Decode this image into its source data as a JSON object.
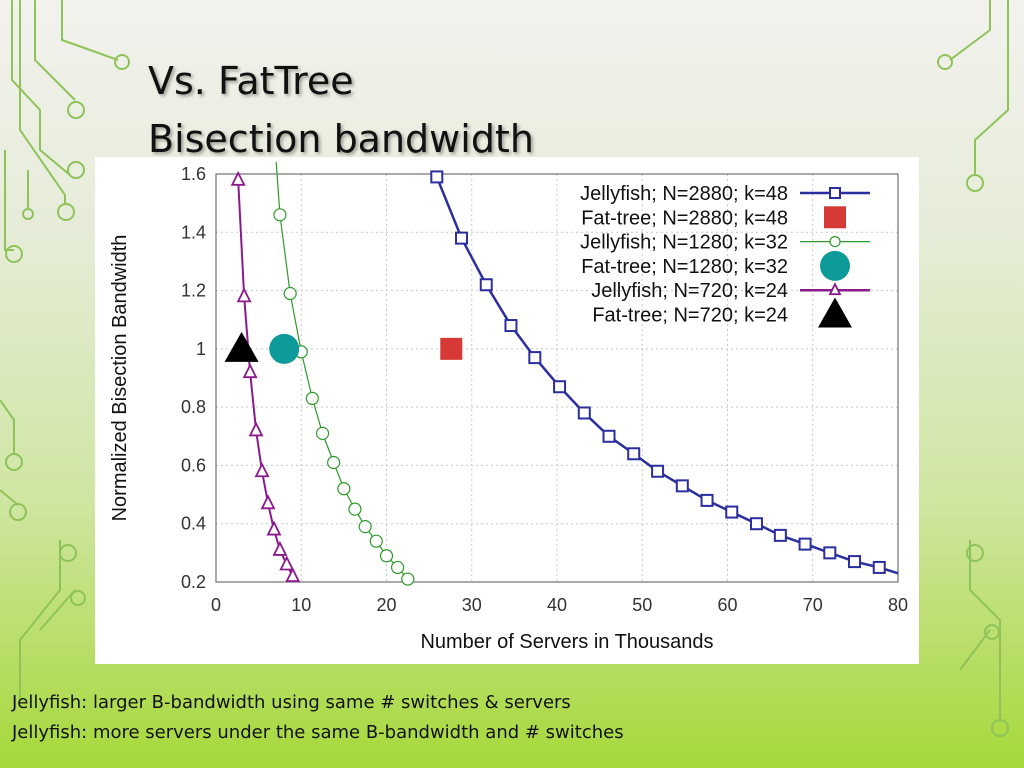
{
  "slide": {
    "title_line1": "Vs. FatTree",
    "title_line2": "Bisection bandwidth",
    "captions": [
      "Jellyfish: larger B-bandwidth using same # switches & servers",
      "Jellyfish: more servers under the same B-bandwidth and # switches"
    ]
  },
  "chart_data": {
    "type": "line",
    "xlabel": "Number of Servers in Thousands",
    "ylabel": "Normalized Bisection Bandwidth",
    "xlim": [
      0,
      80
    ],
    "ylim": [
      0.2,
      1.6
    ],
    "x_ticks": [
      "0",
      "10",
      "20",
      "30",
      "40",
      "50",
      "60",
      "70",
      "80"
    ],
    "y_ticks": [
      "0.2",
      "0.4",
      "0.6",
      "0.8",
      "1",
      "1.2",
      "1.4",
      "1.6"
    ],
    "grid": true,
    "legend_position": "top-right",
    "series": [
      {
        "name": "Jellyfish; N=2880; k=48",
        "kind": "line",
        "marker": "square",
        "color": "#2b2f9e",
        "points": [
          [
            25.9,
            1.59
          ],
          [
            28.8,
            1.38
          ],
          [
            31.7,
            1.22
          ],
          [
            34.6,
            1.08
          ],
          [
            37.4,
            0.97
          ],
          [
            40.3,
            0.87
          ],
          [
            43.2,
            0.78
          ],
          [
            46.1,
            0.7
          ],
          [
            49.0,
            0.64
          ],
          [
            51.8,
            0.58
          ],
          [
            54.7,
            0.53
          ],
          [
            57.6,
            0.48
          ],
          [
            60.5,
            0.44
          ],
          [
            63.4,
            0.4
          ],
          [
            66.2,
            0.36
          ],
          [
            69.1,
            0.33
          ],
          [
            72.0,
            0.3
          ],
          [
            74.9,
            0.27
          ],
          [
            77.8,
            0.25
          ],
          [
            80.0,
            0.23
          ]
        ]
      },
      {
        "name": "Fat-tree; N=2880; k=48",
        "kind": "point",
        "marker": "filled-square",
        "color": "#d63a36",
        "points": [
          [
            27.6,
            1.0
          ]
        ]
      },
      {
        "name": "Jellyfish; N=1280; k=32",
        "kind": "line",
        "marker": "circle",
        "color": "#2f9a2a",
        "points": [
          [
            6.8,
            1.75
          ],
          [
            7.5,
            1.46
          ],
          [
            8.7,
            1.19
          ],
          [
            10.0,
            0.99
          ],
          [
            11.3,
            0.83
          ],
          [
            12.5,
            0.71
          ],
          [
            13.8,
            0.61
          ],
          [
            15.0,
            0.52
          ],
          [
            16.3,
            0.45
          ],
          [
            17.5,
            0.39
          ],
          [
            18.8,
            0.34
          ],
          [
            20.0,
            0.29
          ],
          [
            21.3,
            0.25
          ],
          [
            22.5,
            0.21
          ]
        ]
      },
      {
        "name": "Fat-tree; N=1280; k=32",
        "kind": "point",
        "marker": "filled-circle",
        "color": "#0f9a9a",
        "points": [
          [
            8.0,
            1.0
          ]
        ]
      },
      {
        "name": "Jellyfish; N=720; k=24",
        "kind": "line",
        "marker": "triangle",
        "color": "#8b1a8c",
        "points": [
          [
            2.6,
            1.58
          ],
          [
            3.3,
            1.18
          ],
          [
            4.0,
            0.92
          ],
          [
            4.7,
            0.72
          ],
          [
            5.4,
            0.58
          ],
          [
            6.1,
            0.47
          ],
          [
            6.8,
            0.38
          ],
          [
            7.5,
            0.31
          ],
          [
            8.3,
            0.26
          ],
          [
            9.0,
            0.22
          ]
        ]
      },
      {
        "name": "Fat-tree; N=720; k=24",
        "kind": "point",
        "marker": "filled-triangle",
        "color": "#000000",
        "points": [
          [
            3.0,
            1.0
          ]
        ]
      }
    ]
  }
}
